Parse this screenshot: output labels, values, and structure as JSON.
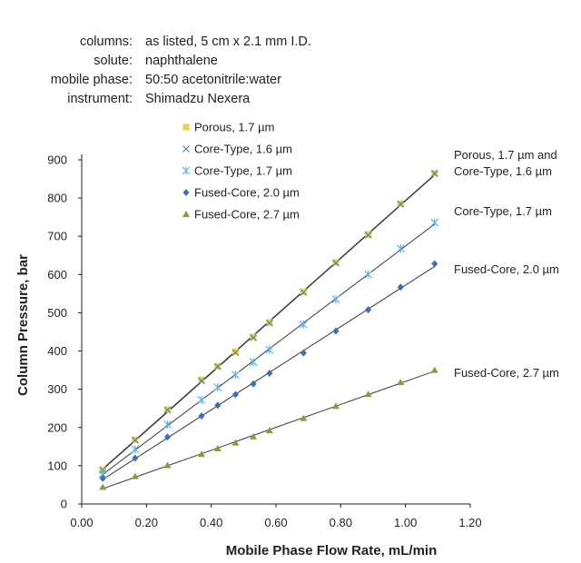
{
  "conditions": [
    {
      "label": "columns:",
      "value": "as listed, 5 cm x 2.1 mm I.D."
    },
    {
      "label": "solute:",
      "value": "naphthalene"
    },
    {
      "label": "mobile phase:",
      "value": "50:50 acetonitrile:water"
    },
    {
      "label": "instrument:",
      "value": "Shimadzu Nexera"
    }
  ],
  "colors": {
    "porous": "#e8d43c",
    "core16": "#5b7fa8",
    "core17": "#5cb8e0",
    "fused20": "#3d6fb8",
    "fused27": "#8a9a3c",
    "fit_line": "#3a3a3a",
    "axis": "#231f20"
  },
  "chart_data": {
    "type": "scatter",
    "xlabel": "Mobile Phase Flow Rate, mL/min",
    "ylabel": "Column Pressure, bar",
    "xlim": [
      0.0,
      1.2
    ],
    "ylim": [
      0,
      900
    ],
    "x_ticks": [
      "0.00",
      "0.20",
      "0.40",
      "0.60",
      "0.80",
      "1.00",
      "1.20"
    ],
    "y_ticks": [
      "0",
      "100",
      "200",
      "300",
      "400",
      "500",
      "600",
      "700",
      "800",
      "900"
    ],
    "trendlines": "linear",
    "grid": false,
    "legend_position": "top-left",
    "series": [
      {
        "name": "Porous, 1.7 µm",
        "marker": "square",
        "color_key": "porous",
        "x": [
          0.065,
          0.165,
          0.265,
          0.37,
          0.42,
          0.475,
          0.53,
          0.58,
          0.685,
          0.785,
          0.885,
          0.985,
          1.09
        ],
        "y": [
          90,
          168,
          247,
          325,
          360,
          398,
          437,
          475,
          555,
          632,
          705,
          785,
          865
        ]
      },
      {
        "name": "Core-Type, 1.6 µm",
        "marker": "x",
        "color_key": "core16",
        "x": [
          0.065,
          0.165,
          0.265,
          0.37,
          0.42,
          0.475,
          0.53,
          0.58,
          0.685,
          0.785,
          0.885,
          0.985,
          1.09
        ],
        "y": [
          88,
          167,
          246,
          322,
          359,
          396,
          435,
          473,
          553,
          630,
          703,
          784,
          864
        ]
      },
      {
        "name": "Core-Type, 1.7 µm",
        "marker": "asterisk",
        "color_key": "core17",
        "x": [
          0.065,
          0.165,
          0.265,
          0.37,
          0.42,
          0.475,
          0.53,
          0.58,
          0.685,
          0.785,
          0.885,
          0.985,
          1.09
        ],
        "y": [
          78,
          143,
          208,
          272,
          305,
          338,
          371,
          403,
          469,
          535,
          600,
          668,
          736
        ]
      },
      {
        "name": "Fused-Core, 2.0 µm",
        "marker": "diamond",
        "color_key": "fused20",
        "x": [
          0.065,
          0.165,
          0.265,
          0.37,
          0.42,
          0.475,
          0.53,
          0.58,
          0.685,
          0.785,
          0.885,
          0.985,
          1.09
        ],
        "y": [
          67,
          120,
          175,
          230,
          258,
          286,
          314,
          342,
          395,
          452,
          508,
          567,
          628
        ]
      },
      {
        "name": "Fused-Core, 2.7 µm",
        "marker": "triangle",
        "color_key": "fused27",
        "x": [
          0.065,
          0.165,
          0.265,
          0.37,
          0.42,
          0.475,
          0.53,
          0.58,
          0.685,
          0.785,
          0.885,
          0.985,
          1.09
        ],
        "y": [
          44,
          72,
          101,
          130,
          145,
          160,
          176,
          192,
          224,
          256,
          287,
          318,
          350
        ]
      }
    ],
    "annotations": [
      {
        "lines": [
          "Porous, 1.7 µm and",
          "Core-Type, 1.6 µm"
        ]
      },
      {
        "lines": [
          "Core-Type, 1.7 µm"
        ]
      },
      {
        "lines": [
          "Fused-Core, 2.0 µm"
        ]
      },
      {
        "lines": [
          "Fused-Core, 2.7 µm"
        ]
      }
    ]
  }
}
